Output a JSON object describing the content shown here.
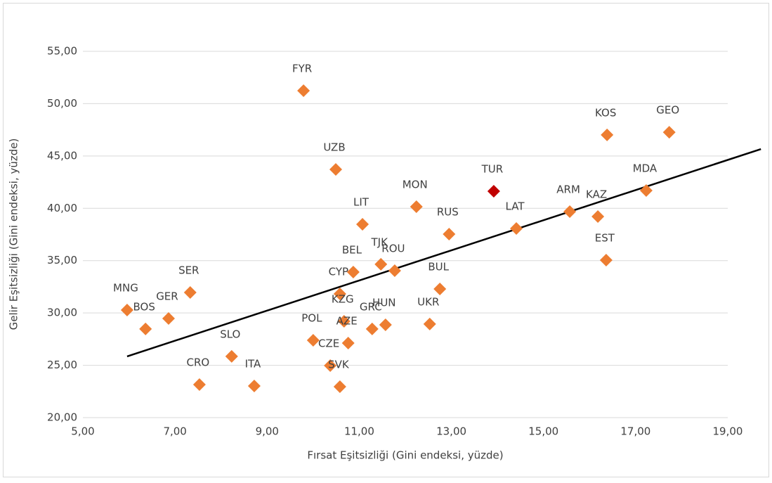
{
  "chart_data": {
    "type": "scatter",
    "x_label": "Fırsat Eşitsizliği (Gini endeksi, yüzde)",
    "y_label": "Gelir Eşitsizliği (Gini endeksi, yüzde)",
    "point_labels": [
      "FYR",
      "UZB",
      "LIT",
      "MON",
      "RUS",
      "TUR",
      "LAT",
      "ARM",
      "KAZ",
      "MDA",
      "KOS",
      "GEO",
      "EST",
      "BEL",
      "TJK",
      "ROU",
      "CYP",
      "BUL",
      "SER",
      "MNG",
      "BOS",
      "GER",
      "KZG",
      "AZE",
      "GRC",
      "HUN",
      "UKR",
      "POL",
      "CZE",
      "SVK",
      "SLO",
      "CRO",
      "ITA"
    ],
    "x": [
      9.79,
      10.49,
      11.07,
      12.24,
      12.95,
      13.92,
      14.41,
      15.57,
      16.18,
      17.23,
      16.38,
      17.73,
      16.36,
      10.87,
      11.47,
      11.77,
      10.58,
      12.75,
      7.33,
      5.96,
      6.36,
      6.86,
      10.67,
      10.76,
      11.28,
      11.57,
      12.53,
      10.0,
      10.37,
      10.58,
      8.23,
      7.53,
      8.72
    ],
    "values": [
      51.24,
      43.71,
      38.47,
      40.15,
      37.53,
      41.63,
      38.07,
      39.68,
      39.21,
      41.7,
      47.01,
      47.27,
      35.05,
      33.91,
      34.65,
      34.04,
      31.82,
      32.29,
      31.96,
      30.28,
      28.47,
      29.47,
      29.2,
      27.12,
      28.47,
      28.87,
      28.94,
      27.39,
      24.97,
      22.96,
      25.85,
      23.16,
      23.02
    ],
    "colors": [
      "#ed7d31",
      "#ed7d31",
      "#ed7d31",
      "#ed7d31",
      "#ed7d31",
      "#c00000",
      "#ed7d31",
      "#ed7d31",
      "#ed7d31",
      "#ed7d31",
      "#ed7d31",
      "#ed7d31",
      "#ed7d31",
      "#ed7d31",
      "#ed7d31",
      "#ed7d31",
      "#ed7d31",
      "#ed7d31",
      "#ed7d31",
      "#ed7d31",
      "#ed7d31",
      "#ed7d31",
      "#ed7d31",
      "#ed7d31",
      "#ed7d31",
      "#ed7d31",
      "#ed7d31",
      "#ed7d31",
      "#ed7d31",
      "#ed7d31",
      "#ed7d31",
      "#ed7d31",
      "#ed7d31"
    ],
    "trendline": {
      "x": [
        5.96,
        19.72
      ],
      "values": [
        25.85,
        45.66
      ],
      "color": "#000000"
    },
    "xlim": [
      5,
      19
    ],
    "ylim": [
      20,
      55
    ],
    "xticks": [
      {
        "value": 5,
        "label": "5,00"
      },
      {
        "value": 7,
        "label": "7,00"
      },
      {
        "value": 9,
        "label": "9,00"
      },
      {
        "value": 11,
        "label": "11,00"
      },
      {
        "value": 13,
        "label": "13,00"
      },
      {
        "value": 15,
        "label": "15,00"
      },
      {
        "value": 17,
        "label": "17,00"
      },
      {
        "value": 19,
        "label": "19,00"
      }
    ],
    "yticks": [
      {
        "value": 20,
        "label": "20,00"
      },
      {
        "value": 25,
        "label": "25,00"
      },
      {
        "value": 30,
        "label": "30,00"
      },
      {
        "value": 35,
        "label": "35,00"
      },
      {
        "value": 40,
        "label": "40,00"
      },
      {
        "value": 45,
        "label": "45,00"
      },
      {
        "value": 50,
        "label": "50,00"
      },
      {
        "value": 55,
        "label": "55,00"
      }
    ],
    "grid": true
  }
}
